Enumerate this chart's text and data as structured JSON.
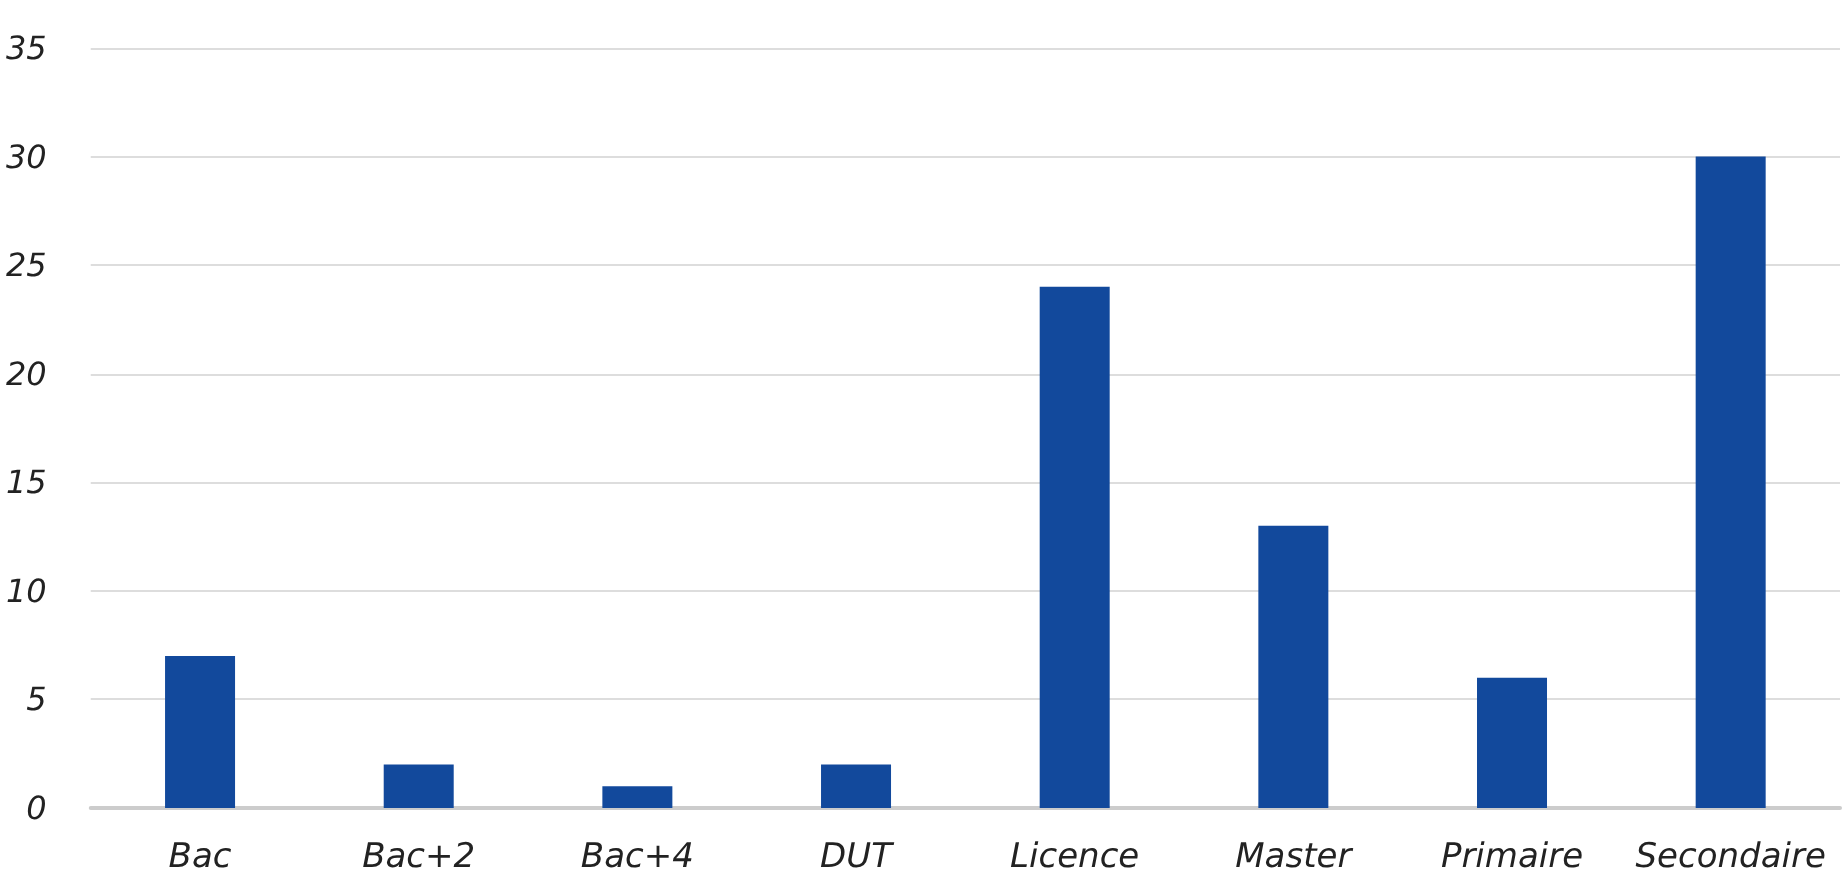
{
  "chart_data": {
    "type": "bar",
    "categories": [
      "Bac",
      "Bac+2",
      "Bac+4",
      "DUT",
      "Licence",
      "Master",
      "Primaire",
      "Secondaire"
    ],
    "values": [
      7,
      2,
      1,
      2,
      24,
      13,
      6,
      30
    ],
    "color": "#12499c",
    "ylim": [
      0,
      35
    ],
    "yticks": [
      0,
      5,
      10,
      15,
      20,
      25,
      30,
      35
    ],
    "grid": "y"
  }
}
